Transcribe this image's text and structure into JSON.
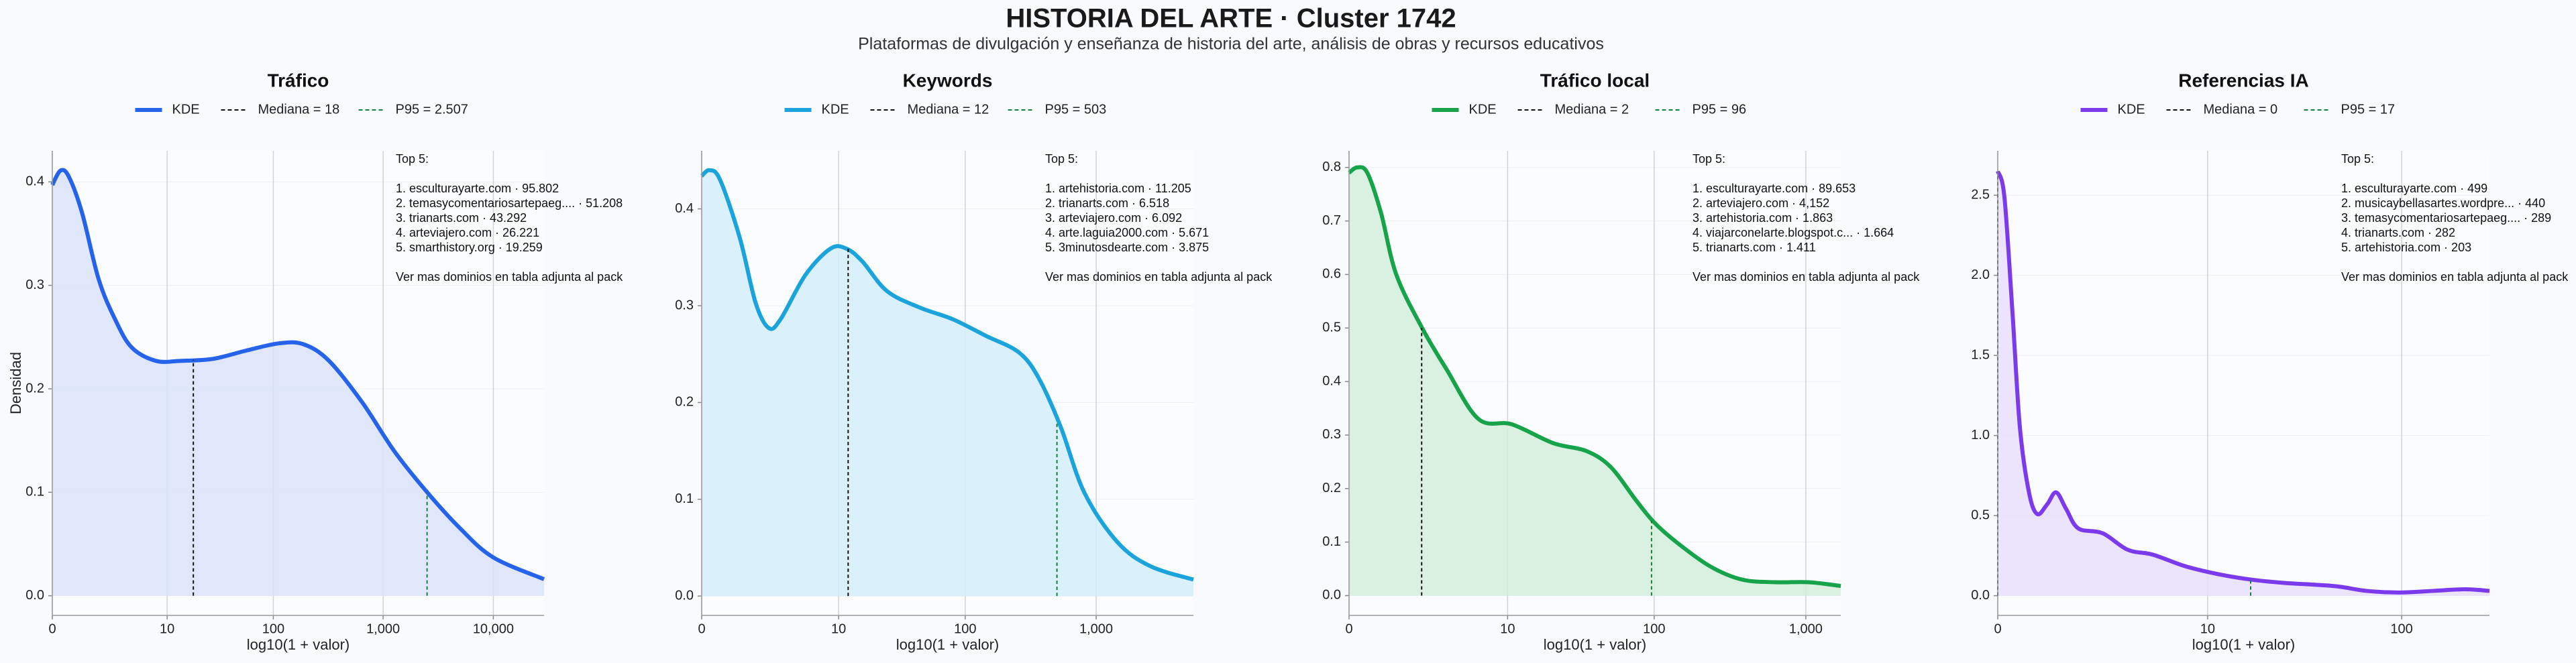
{
  "title": "HISTORIA DEL ARTE · Cluster 1742",
  "subtitle": "Plataformas de divulgación y enseñanza de historia del arte, análisis de obras y recursos educativos",
  "chart_data": [
    {
      "type": "area",
      "title": "Tráfico",
      "x_label": "log10(1 + valor)",
      "y_label": "Densidad",
      "x": [
        0,
        0.075,
        0.15,
        0.27,
        0.42,
        0.57,
        0.72,
        0.94,
        1.16,
        1.46,
        1.76,
        2.06,
        2.28,
        2.51,
        2.81,
        3.1,
        3.4,
        3.7,
        4.0,
        4.46
      ],
      "series": [
        {
          "name": "KDE",
          "color": "#2563eb",
          "fill": "#dbe3fa",
          "values": [
            0.397,
            0.411,
            0.405,
            0.37,
            0.306,
            0.267,
            0.24,
            0.227,
            0.227,
            0.229,
            0.237,
            0.244,
            0.243,
            0.227,
            0.187,
            0.14,
            0.1,
            0.065,
            0.037,
            0.016
          ]
        }
      ],
      "median": {
        "name": "Mediana = 18",
        "color": "#111111",
        "x": 1.279,
        "density": 0.228
      },
      "p95": {
        "name": "P95 = 2.507",
        "color": "#15803d",
        "x": 3.399,
        "density": 0.1
      },
      "xlim": [
        0,
        4.46
      ],
      "ylim": [
        -0.019,
        0.43
      ],
      "xticks": [
        0,
        {
          "value": 1.0414,
          "label": "10"
        },
        {
          "value": 2.0043,
          "label": "100"
        },
        {
          "value": 3.0004,
          "label": "1,000"
        },
        {
          "value": 4.0,
          "label": "10,000"
        }
      ],
      "yticks": [
        {
          "value": 0,
          "label": "0.0"
        },
        0.1,
        0.2,
        0.3,
        0.4
      ],
      "grid": true,
      "annotation": {
        "heading": "Top 5:",
        "items": [
          "1. esculturayarte.com · 95.802",
          "2. temasycomentariosartepaeg.... · 51.208",
          "3. trianarts.com · 43.292",
          "4. arteviajero.com · 26.221",
          "5. smarthistory.org · 19.259"
        ],
        "footer": "Ver mas dominios en tabla adjunta al pack"
      }
    },
    {
      "type": "area",
      "title": "Keywords",
      "x_label": "log10(1 + valor)",
      "x": [
        0,
        0.06,
        0.14,
        0.29,
        0.41,
        0.51,
        0.6,
        0.79,
        0.98,
        1.1,
        1.22,
        1.41,
        1.66,
        1.91,
        2.16,
        2.41,
        2.56,
        2.73,
        2.91,
        3.16,
        3.41,
        3.74
      ],
      "series": [
        {
          "name": "KDE",
          "color": "#1ba3dc",
          "fill": "#d3eefb",
          "values": [
            0.434,
            0.44,
            0.43,
            0.37,
            0.303,
            0.277,
            0.286,
            0.332,
            0.359,
            0.359,
            0.346,
            0.315,
            0.298,
            0.286,
            0.269,
            0.252,
            0.226,
            0.175,
            0.107,
            0.056,
            0.031,
            0.017
          ]
        }
      ],
      "median": {
        "name": "Mediana = 12",
        "color": "#111111",
        "x": 1.114,
        "density": 0.359
      },
      "p95": {
        "name": "P95 = 503",
        "color": "#15803d",
        "x": 2.702,
        "density": 0.18
      },
      "xlim": [
        0,
        3.74
      ],
      "ylim": [
        -0.02,
        0.46
      ],
      "xticks": [
        0,
        {
          "value": 1.0414,
          "label": "10"
        },
        {
          "value": 2.0043,
          "label": "100"
        },
        {
          "value": 3.0004,
          "label": "1,000"
        }
      ],
      "yticks": [
        {
          "value": 0,
          "label": "0.0"
        },
        0.1,
        0.2,
        0.3,
        0.4
      ],
      "grid": true,
      "annotation": {
        "heading": "Top 5:",
        "items": [
          "1. artehistoria.com · 11.205",
          "2. trianarts.com · 6.518",
          "3. arteviajero.com · 6.092",
          "4. arte.laguia2000.com · 5.671",
          "5. 3minutosdearte.com · 3.875"
        ],
        "footer": "Ver mas dominios en tabla adjunta al pack"
      }
    },
    {
      "type": "area",
      "title": "Tráfico local",
      "x_label": "log10(1 + valor)",
      "x": [
        0,
        0.054,
        0.12,
        0.21,
        0.31,
        0.48,
        0.64,
        0.85,
        1.07,
        1.34,
        1.56,
        1.72,
        1.88,
        2.0,
        2.15,
        2.37,
        2.58,
        2.8,
        3.02,
        3.23
      ],
      "series": [
        {
          "name": "KDE",
          "color": "#16a34a",
          "fill": "#d3efdc",
          "values": [
            0.79,
            0.8,
            0.79,
            0.715,
            0.6,
            0.5,
            0.423,
            0.33,
            0.32,
            0.285,
            0.27,
            0.24,
            0.18,
            0.138,
            0.1,
            0.055,
            0.03,
            0.025,
            0.025,
            0.018
          ]
        }
      ],
      "median": {
        "name": "Mediana = 2",
        "color": "#111111",
        "x": 0.477,
        "density": 0.5
      },
      "p95": {
        "name": "P95 = 96",
        "color": "#15803d",
        "x": 1.987,
        "density": 0.14
      },
      "xlim": [
        0,
        3.23
      ],
      "ylim": [
        -0.037,
        0.831
      ],
      "xticks": [
        0,
        {
          "value": 1.0414,
          "label": "10"
        },
        {
          "value": 2.0043,
          "label": "100"
        },
        {
          "value": 3.0004,
          "label": "1,000"
        }
      ],
      "yticks": [
        {
          "value": 0,
          "label": "0.0"
        },
        0.1,
        0.2,
        0.3,
        0.4,
        0.5,
        0.6,
        0.7,
        0.8
      ],
      "grid": true,
      "annotation": {
        "heading": "Top 5:",
        "items": [
          "1. esculturayarte.com · 89.653",
          "2. arteviajero.com · 4,152",
          "3. artehistoria.com · 1.863",
          "4. viajarconelarte.blogspot.c... · 1.664",
          "5. trianarts.com · 1.411"
        ],
        "footer": "Ver mas dominios en tabla adjunta al pack"
      }
    },
    {
      "type": "area",
      "title": "Referencias IA",
      "x_label": "log10(1 + valor)",
      "x": [
        0,
        0.033,
        0.073,
        0.11,
        0.155,
        0.196,
        0.245,
        0.29,
        0.34,
        0.4,
        0.52,
        0.645,
        0.77,
        0.93,
        1.1,
        1.26,
        1.42,
        1.67,
        1.83,
        1.99,
        2.16,
        2.32,
        2.44
      ],
      "series": [
        {
          "name": "KDE",
          "color": "#7c3aed",
          "fill": "#e9defb",
          "values": [
            2.65,
            2.49,
            1.77,
            1.05,
            0.645,
            0.51,
            0.57,
            0.645,
            0.54,
            0.42,
            0.39,
            0.287,
            0.256,
            0.184,
            0.133,
            0.1,
            0.08,
            0.06,
            0.03,
            0.02,
            0.03,
            0.04,
            0.03
          ]
        }
      ],
      "median": {
        "name": "Mediana = 0",
        "color": "#111111",
        "x": 0,
        "density": 2.65
      },
      "p95": {
        "name": "P95 = 17",
        "color": "#15803d",
        "x": 1.255,
        "density": 0.1
      },
      "xlim": [
        0,
        2.44
      ],
      "ylim": [
        -0.123,
        2.777
      ],
      "xticks": [
        0,
        {
          "value": 1.0414,
          "label": "10"
        },
        {
          "value": 2.0043,
          "label": "100"
        }
      ],
      "yticks": [
        {
          "value": 0,
          "label": "0.0"
        },
        0.5,
        {
          "value": 1,
          "label": "1.0"
        },
        1.5,
        {
          "value": 2,
          "label": "2.0"
        },
        2.5
      ],
      "grid": true,
      "annotation": {
        "heading": "Top 5:",
        "items": [
          "1. esculturayarte.com · 499",
          "2. musicaybellasartes.wordpre... · 440",
          "3. temasycomentariosartepaeg.... · 289",
          "4. trianarts.com · 282",
          "5. artehistoria.com · 203"
        ],
        "footer": "Ver mas dominios en tabla adjunta al pack"
      }
    }
  ]
}
